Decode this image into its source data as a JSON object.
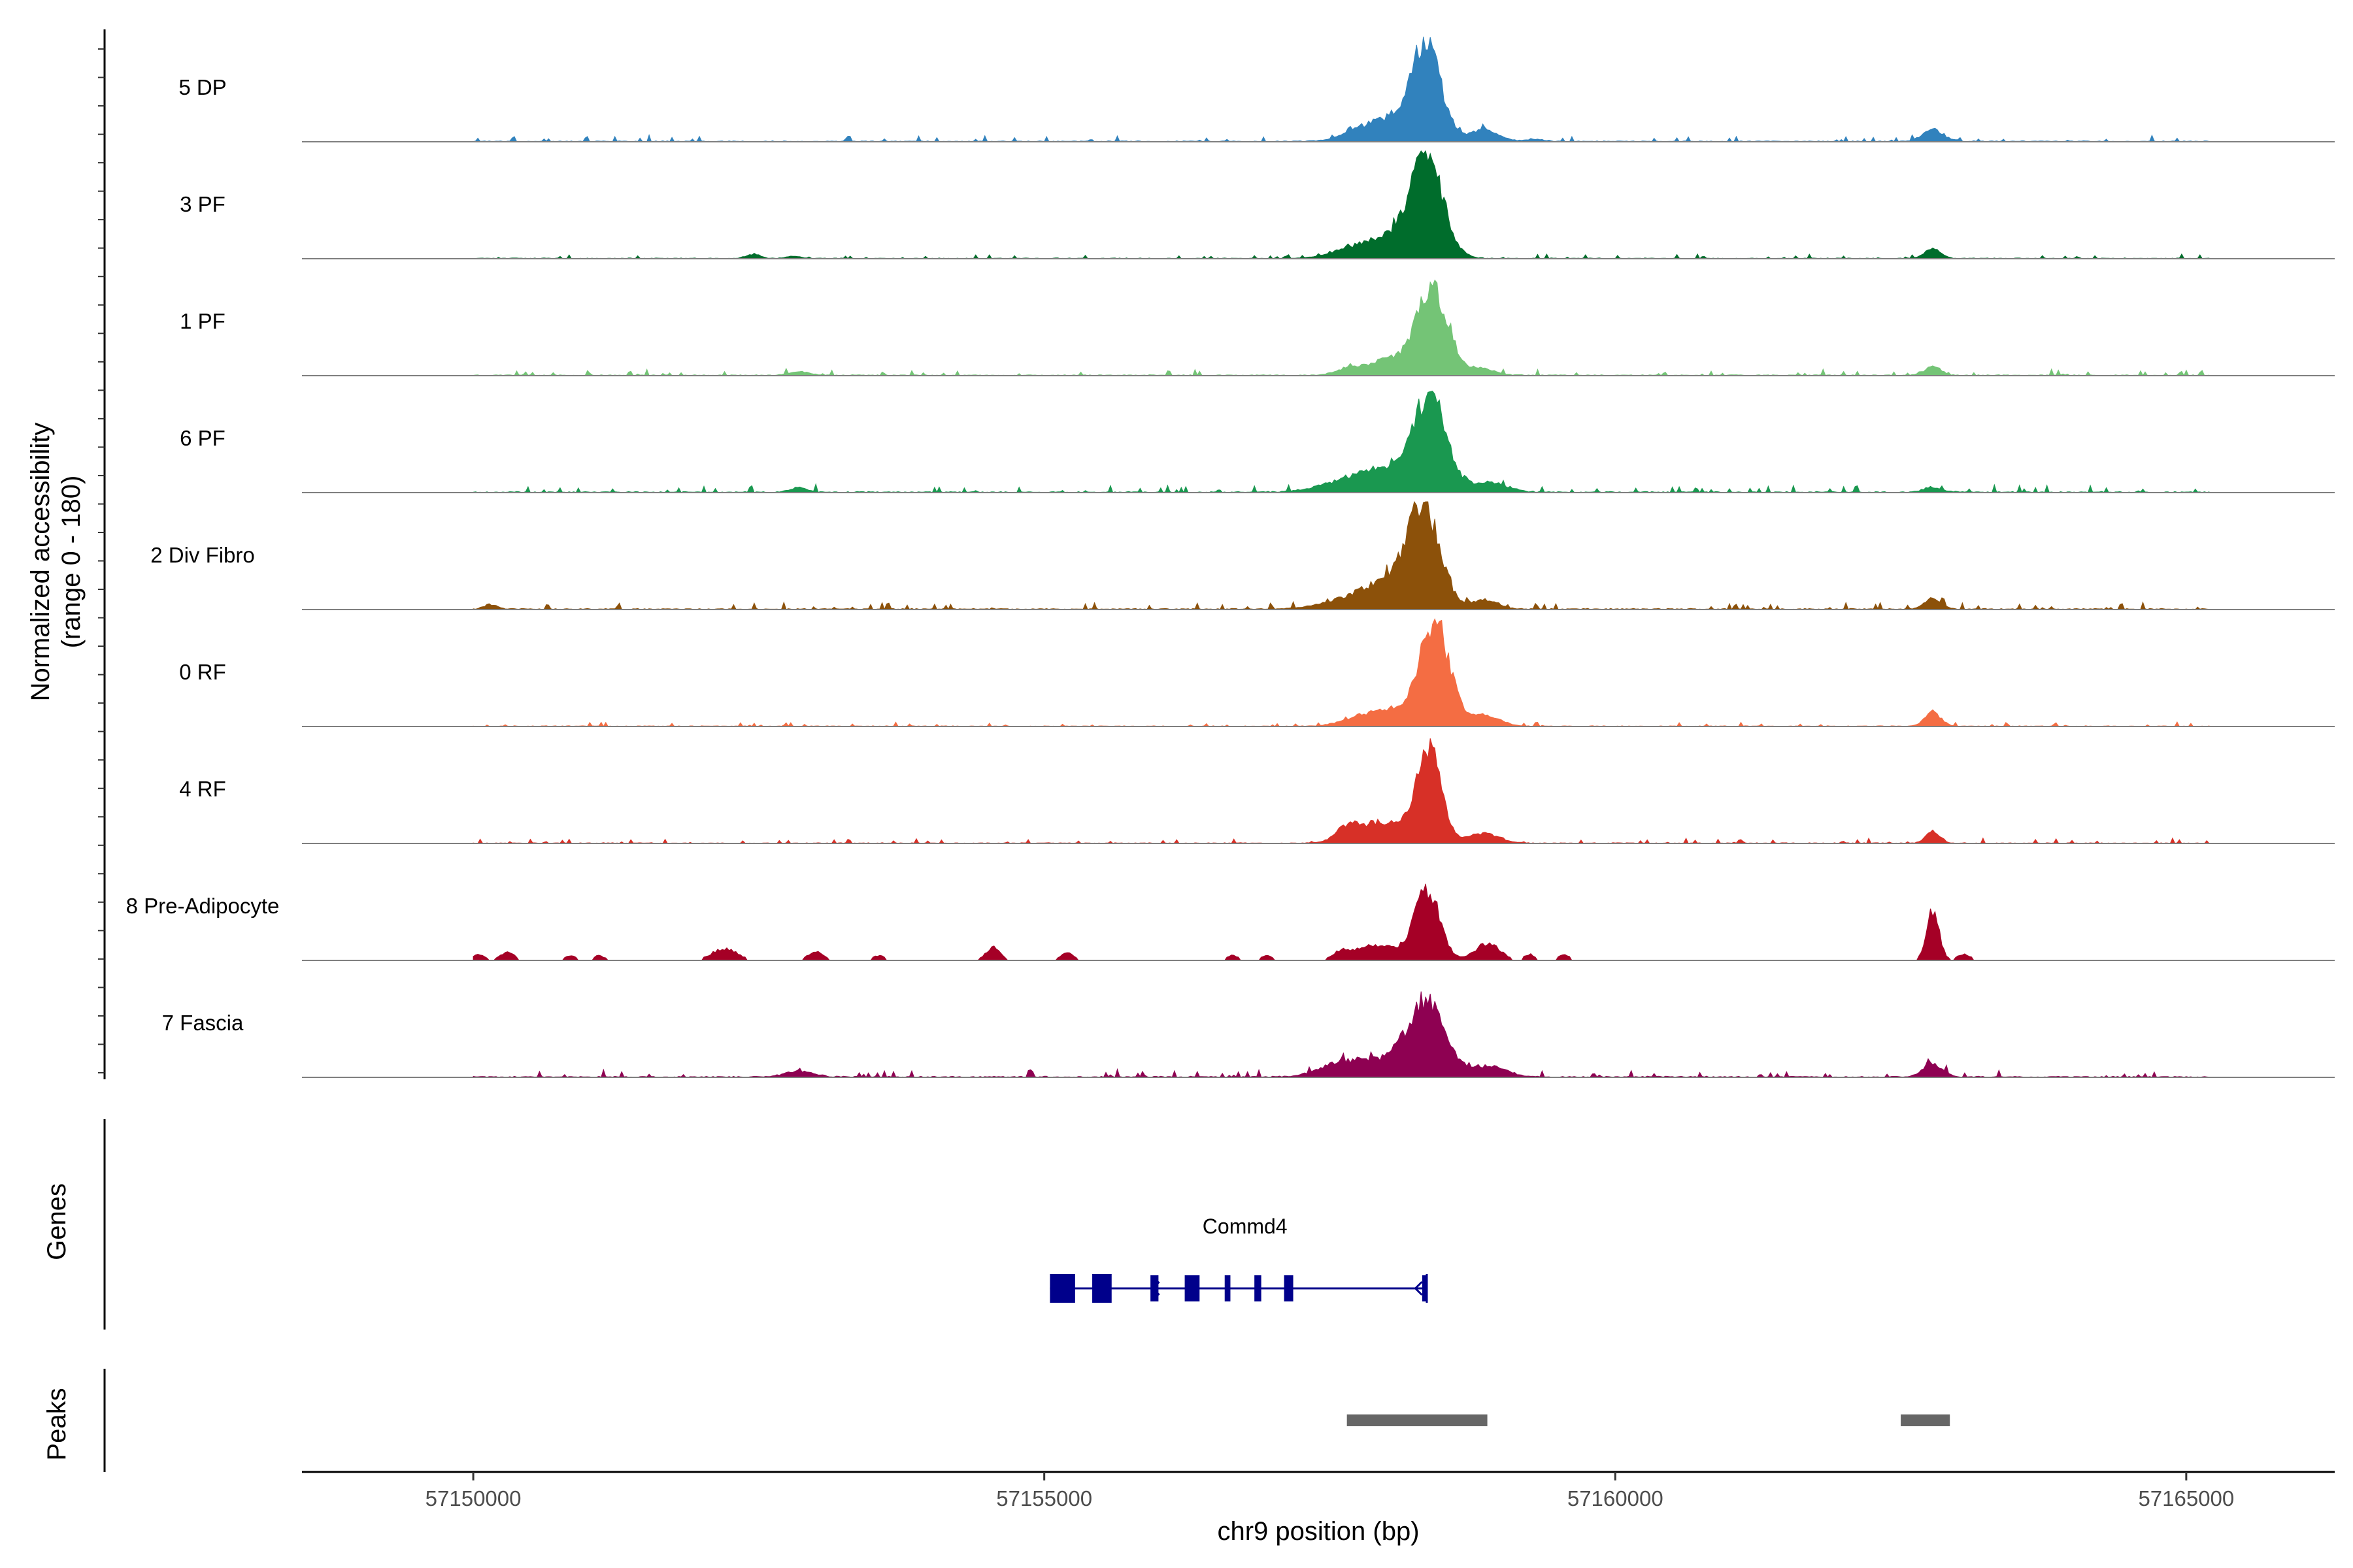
{
  "chart_data": {
    "type": "area",
    "title": "",
    "xlabel": "chr9 position (bp)",
    "ylabel_line1": "Normalized accessibility",
    "ylabel_line2": "(range 0 - 180)",
    "genes_label": "Genes",
    "peaks_label": "Peaks",
    "xlim": [
      57148500,
      57166300
    ],
    "ylim": [
      0,
      180
    ],
    "x_ticks": [
      57150000,
      57155000,
      57160000,
      57165000
    ],
    "x_tick_labels": [
      "57150000",
      "57155000",
      "57160000",
      "57165000"
    ],
    "baseline_color": "#7f7f7f",
    "tracks": [
      {
        "name": "5 DP",
        "color": "#3182BD",
        "peaks": [
          [
            57158350,
            150,
            120
          ],
          [
            57158050,
            40,
            250
          ],
          [
            57157700,
            9,
            80
          ],
          [
            57158850,
            18,
            130
          ],
          [
            57162780,
            20,
            90
          ],
          [
            57159300,
            4,
            80
          ]
        ],
        "background": 2.5
      },
      {
        "name": "3 PF",
        "color": "#006D2C",
        "peaks": [
          [
            57158350,
            160,
            140
          ],
          [
            57158000,
            35,
            250
          ],
          [
            57157600,
            5,
            150
          ],
          [
            57162780,
            16,
            70
          ],
          [
            57152450,
            7,
            60
          ],
          [
            57152800,
            4,
            60
          ]
        ],
        "background": 2
      },
      {
        "name": "1 PF",
        "color": "#74C476",
        "peaks": [
          [
            57158400,
            140,
            130
          ],
          [
            57158050,
            28,
            220
          ],
          [
            57157650,
            8,
            100
          ],
          [
            57158800,
            12,
            130
          ],
          [
            57162780,
            15,
            70
          ],
          [
            57152850,
            6,
            90
          ]
        ],
        "background": 2.5
      },
      {
        "name": "6 PF",
        "color": "#1A9850",
        "peaks": [
          [
            57158380,
            145,
            140
          ],
          [
            57158000,
            40,
            300
          ],
          [
            57157500,
            6,
            200
          ],
          [
            57158900,
            16,
            150
          ],
          [
            57162780,
            8,
            80
          ],
          [
            57152850,
            8,
            70
          ]
        ],
        "background": 3
      },
      {
        "name": "2 Div Fibro",
        "color": "#8C510A",
        "peaks": [
          [
            57158320,
            160,
            140
          ],
          [
            57158000,
            45,
            260
          ],
          [
            57157500,
            6,
            200
          ],
          [
            57158850,
            15,
            120
          ],
          [
            57162780,
            18,
            70
          ],
          [
            57150150,
            7,
            60
          ]
        ],
        "background": 3
      },
      {
        "name": "0 RF",
        "color": "#F46D43",
        "peaks": [
          [
            57158420,
            165,
            130
          ],
          [
            57158050,
            28,
            240
          ],
          [
            57157700,
            6,
            120
          ],
          [
            57158850,
            18,
            130
          ],
          [
            57162780,
            22,
            70
          ]
        ],
        "background": 2
      },
      {
        "name": "4 RF",
        "color": "#D73027",
        "peaks": [
          [
            57158370,
            150,
            110
          ],
          [
            57157950,
            35,
            220
          ],
          [
            57157650,
            18,
            90
          ],
          [
            57158850,
            16,
            130
          ],
          [
            57162780,
            20,
            60
          ]
        ],
        "background": 2
      },
      {
        "name": "8 Pre-Adipocyte",
        "color": "#A50026",
        "blocky": true,
        "peaks": [
          [
            57158350,
            118,
            110
          ],
          [
            57157900,
            25,
            200
          ],
          [
            57158880,
            28,
            110
          ],
          [
            57162780,
            85,
            55
          ],
          [
            57154550,
            22,
            60
          ],
          [
            57152200,
            20,
            110
          ],
          [
            57150300,
            14,
            60
          ],
          [
            57155200,
            12,
            60
          ],
          [
            57153000,
            14,
            70
          ],
          [
            57150050,
            10,
            50
          ],
          [
            57150850,
            8,
            50
          ],
          [
            57151100,
            8,
            50
          ],
          [
            57153550,
            8,
            50
          ],
          [
            57156650,
            8,
            50
          ],
          [
            57156950,
            8,
            50
          ],
          [
            57157600,
            10,
            60
          ],
          [
            57159250,
            10,
            50
          ],
          [
            57159550,
            10,
            50
          ],
          [
            57163050,
            10,
            60
          ]
        ],
        "background": 0
      },
      {
        "name": "7 Fascia",
        "color": "#8E0152",
        "peaks": [
          [
            57158350,
            120,
            160
          ],
          [
            57157900,
            28,
            300
          ],
          [
            57157550,
            10,
            150
          ],
          [
            57158900,
            18,
            150
          ],
          [
            57162780,
            22,
            80
          ],
          [
            57152850,
            10,
            120
          ]
        ],
        "background": 3
      }
    ],
    "gene": {
      "name": "Commd4",
      "strand": "-",
      "start": 57155050,
      "end": 57158350,
      "color": "#00008B",
      "exons": [
        [
          57155050,
          57155270
        ],
        [
          57155420,
          57155590
        ],
        [
          57155930,
          57156000
        ],
        [
          57156230,
          57156360
        ],
        [
          57156580,
          57156630
        ],
        [
          57156840,
          57156900
        ],
        [
          57157100,
          57157180
        ],
        [
          57158310,
          57158350
        ]
      ],
      "strand_arrows": [
        57155950,
        57158250
      ]
    },
    "peak_regions": [
      {
        "start": 57157650,
        "end": 57158880,
        "color": "#666666"
      },
      {
        "start": 57162500,
        "end": 57162930,
        "color": "#666666"
      }
    ]
  }
}
